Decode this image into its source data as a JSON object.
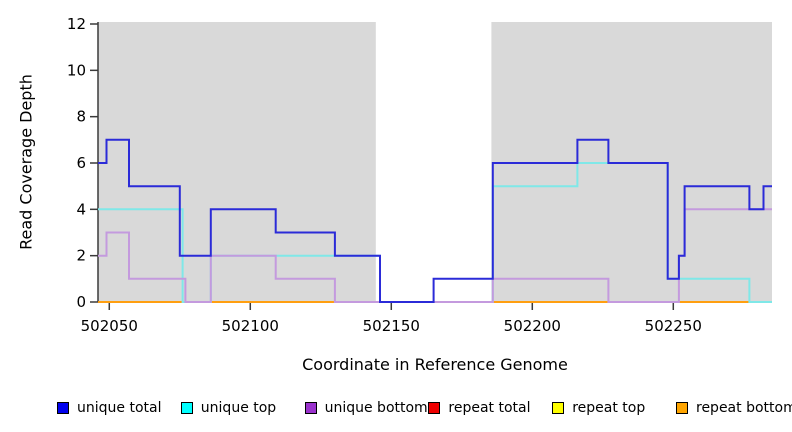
{
  "chart_data": {
    "type": "step-line",
    "title": "",
    "xlabel": "Coordinate in Reference Genome",
    "ylabel": "Read Coverage Depth",
    "xlim": [
      502046,
      502285
    ],
    "ylim": [
      0,
      12
    ],
    "x_ticks": [
      502050,
      502100,
      502150,
      502200,
      502250
    ],
    "y_ticks": [
      0,
      2,
      4,
      6,
      8,
      10,
      12
    ],
    "grid": false,
    "legend_position": "bottom",
    "plot_bg_color": "#d9d9d9",
    "unmasked_region": {
      "from": 502144.5,
      "to": 502185.5,
      "color": "#ffffff"
    },
    "axis_color": "#3a3a3a",
    "draw_order": [
      3,
      4,
      5,
      1,
      2,
      0
    ],
    "series": [
      {
        "name": "unique total",
        "legend_color": "#0000ee",
        "line_color": "#2b2bd8",
        "points": [
          [
            502046,
            6
          ],
          [
            502049,
            7
          ],
          [
            502057,
            5
          ],
          [
            502075,
            2
          ],
          [
            502086,
            4
          ],
          [
            502109,
            3
          ],
          [
            502130,
            2
          ],
          [
            502146,
            0
          ],
          [
            502165,
            1
          ],
          [
            502186,
            6
          ],
          [
            502216,
            7
          ],
          [
            502227,
            6
          ],
          [
            502248,
            1
          ],
          [
            502252,
            2
          ],
          [
            502254,
            5
          ],
          [
            502277,
            4
          ],
          [
            502282,
            5
          ],
          [
            502285,
            5
          ]
        ]
      },
      {
        "name": "unique top",
        "legend_color": "#00ffff",
        "line_color": "#7fe8e8",
        "points": [
          [
            502046,
            4
          ],
          [
            502076,
            0
          ],
          [
            502086,
            2
          ],
          [
            502146,
            0
          ],
          [
            502186,
            5
          ],
          [
            502216,
            6
          ],
          [
            502248,
            1
          ],
          [
            502277,
            0
          ],
          [
            502285,
            0
          ]
        ]
      },
      {
        "name": "unique bottom",
        "legend_color": "#9a32cd",
        "line_color": "#c49ade",
        "points": [
          [
            502046,
            2
          ],
          [
            502049,
            3
          ],
          [
            502057,
            1
          ],
          [
            502077,
            0
          ],
          [
            502086,
            2
          ],
          [
            502109,
            1
          ],
          [
            502130,
            0
          ],
          [
            502186,
            1
          ],
          [
            502227,
            0
          ],
          [
            502252,
            2
          ],
          [
            502254,
            4
          ],
          [
            502285,
            4
          ]
        ]
      },
      {
        "name": "repeat total",
        "legend_color": "#ee0000",
        "line_color": "#dd2222",
        "points": [
          [
            502046,
            0
          ],
          [
            502285,
            0
          ]
        ]
      },
      {
        "name": "repeat top",
        "legend_color": "#ffff00",
        "line_color": "#ffff33",
        "points": [
          [
            502046,
            0
          ],
          [
            502285,
            0
          ]
        ]
      },
      {
        "name": "repeat bottom",
        "legend_color": "#ffa500",
        "line_color": "#ff9f10",
        "points": [
          [
            502046,
            0
          ],
          [
            502285,
            0
          ]
        ]
      }
    ]
  }
}
